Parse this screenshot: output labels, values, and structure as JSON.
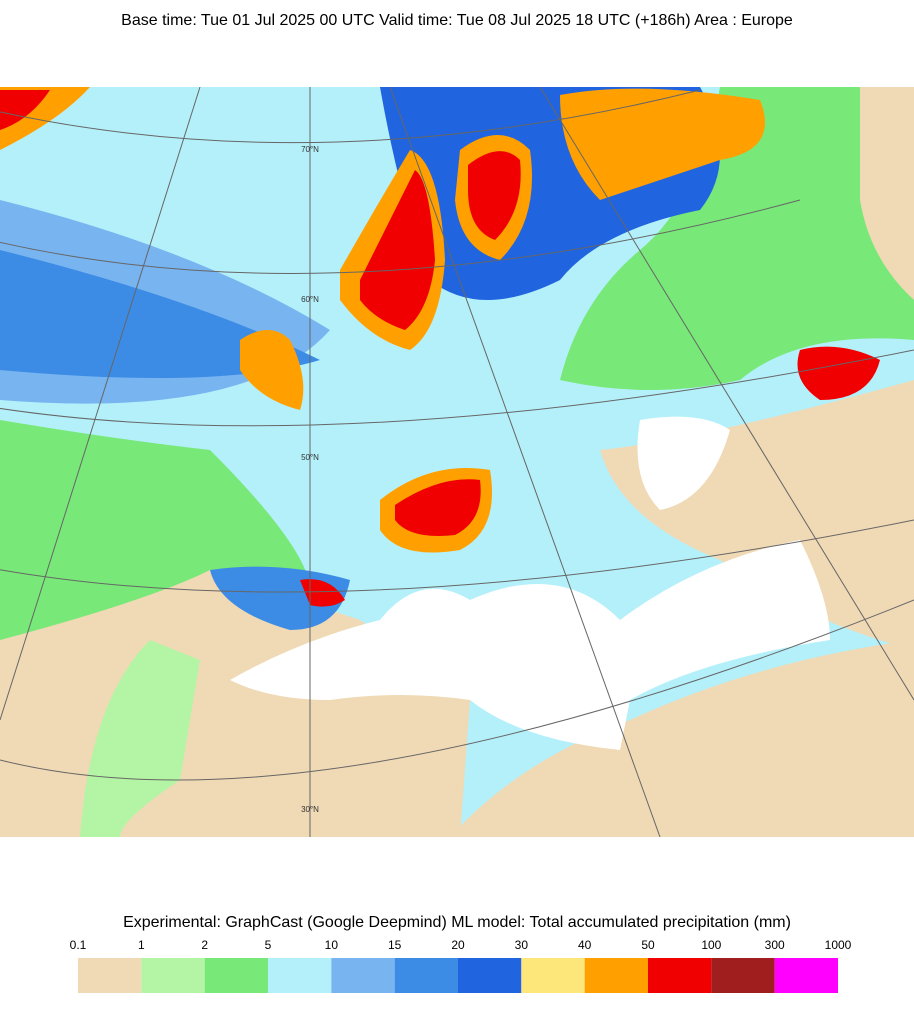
{
  "header": {
    "title": "Base time: Tue 01 Jul 2025 00 UTC Valid time: Tue 08 Jul 2025 18 UTC (+186h) Area : Europe"
  },
  "map": {
    "lat_labels": [
      "70°N",
      "60°N",
      "50°N",
      "30°N"
    ]
  },
  "legend": {
    "title": "Experimental: GraphCast (Google Deepmind) ML model: Total accumulated precipitation (mm)",
    "ticks": [
      0.1,
      1,
      2,
      5,
      10,
      15,
      20,
      30,
      40,
      50,
      100,
      300,
      1000
    ],
    "colors": [
      "#f0d9b5",
      "#b4f5a5",
      "#78e878",
      "#b4f0fa",
      "#78b4f0",
      "#3c8ce6",
      "#2064e0",
      "#fde67a",
      "#ffa000",
      "#f00000",
      "#a01e1e",
      "#ff00ff"
    ]
  }
}
